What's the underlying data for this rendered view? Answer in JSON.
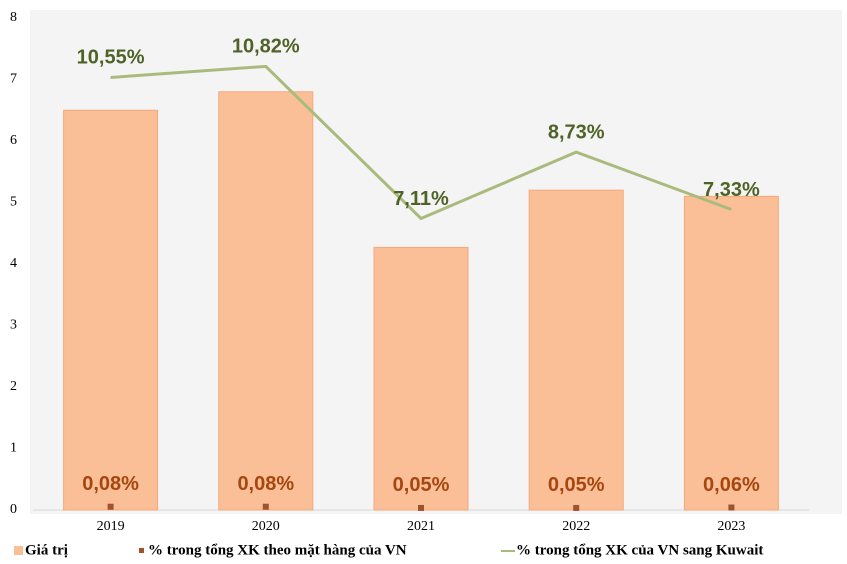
{
  "chart_data": {
    "type": "bar",
    "categories": [
      "2019",
      "2020",
      "2021",
      "2022",
      "2023"
    ],
    "ylim": [
      0,
      8
    ],
    "yticks": [
      0,
      1,
      2,
      3,
      4,
      5,
      6,
      7,
      8
    ],
    "y2lim": [
      0,
      12
    ],
    "series": [
      {
        "name": "Giá trị",
        "type": "bar",
        "color": "#fbbf98",
        "values": [
          6.5,
          6.8,
          4.27,
          5.2,
          5.1
        ]
      },
      {
        "name": "% trong tổng XK theo mặt hàng của VN",
        "type": "marker",
        "axis": "y2",
        "color": "#a0522d",
        "values": [
          0.08,
          0.08,
          0.05,
          0.05,
          0.06
        ],
        "value_labels": [
          "0,08%",
          "0,08%",
          "0,05%",
          "0,05%",
          "0,06%"
        ],
        "label_color": "#a5470f"
      },
      {
        "name": "% trong tổng XK của VN sang Kuwait",
        "type": "line",
        "axis": "y2",
        "color": "#a9bb7c",
        "values": [
          10.55,
          10.82,
          7.11,
          8.73,
          7.33
        ],
        "value_labels": [
          "10,55%",
          "10,82%",
          "7,11%",
          "8,73%",
          "7,33%"
        ],
        "label_color": "#4f6228"
      }
    ]
  }
}
